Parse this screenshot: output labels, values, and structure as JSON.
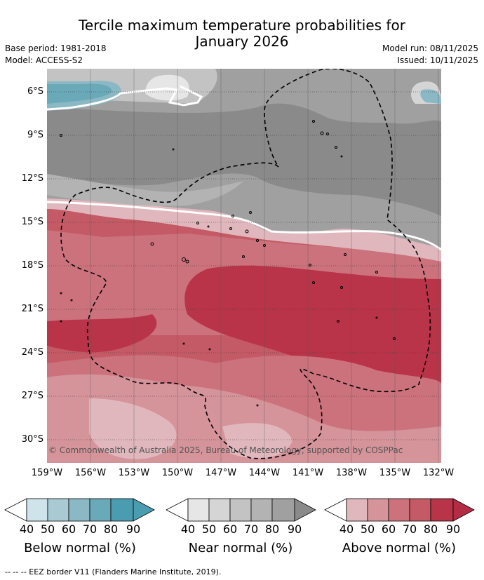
{
  "header": {
    "title_line1": "Tercile maximum temperature probabilities for",
    "title_line2": "January 2026",
    "base_period": "Base period: 1981-2018",
    "model": "Model: ACCESS-S2",
    "model_run": "Model run: 08/11/2025",
    "issued": "Issued: 10/11/2025"
  },
  "map": {
    "lat_labels": [
      "6°S",
      "9°S",
      "12°S",
      "15°S",
      "18°S",
      "21°S",
      "24°S",
      "27°S",
      "30°S"
    ],
    "lon_labels": [
      "159°W",
      "156°W",
      "153°W",
      "150°W",
      "147°W",
      "144°W",
      "141°W",
      "138°W",
      "135°W",
      "132°W"
    ],
    "copyright": "© Commonwealth of Australia 2025, Bureau of Meteorology, supported by COSPPac"
  },
  "legend": {
    "below": {
      "title": "Below normal (%)",
      "ticks": [
        "40",
        "50",
        "60",
        "70",
        "80",
        "90"
      ],
      "colors": [
        "#ffffff",
        "#cfe3ea",
        "#a9cad3",
        "#8ab8c5",
        "#6aa9b8",
        "#4a9db0"
      ]
    },
    "near": {
      "title": "Near normal (%)",
      "ticks": [
        "40",
        "50",
        "60",
        "70",
        "80",
        "90"
      ],
      "colors": [
        "#ffffff",
        "#e6e6e6",
        "#d5d5d5",
        "#c3c3c3",
        "#b3b3b3",
        "#a0a0a0",
        "#8a8a8a"
      ]
    },
    "above": {
      "title": "Above normal (%)",
      "ticks": [
        "40",
        "50",
        "60",
        "70",
        "80",
        "90"
      ],
      "colors": [
        "#ffffff",
        "#e0b7bd",
        "#d5939a",
        "#cc727c",
        "#c45a66",
        "#b93448",
        "#b32c44"
      ]
    }
  },
  "footer": "--  --  -- EEZ border V11 (Flanders Marine Institute, 2019)."
}
